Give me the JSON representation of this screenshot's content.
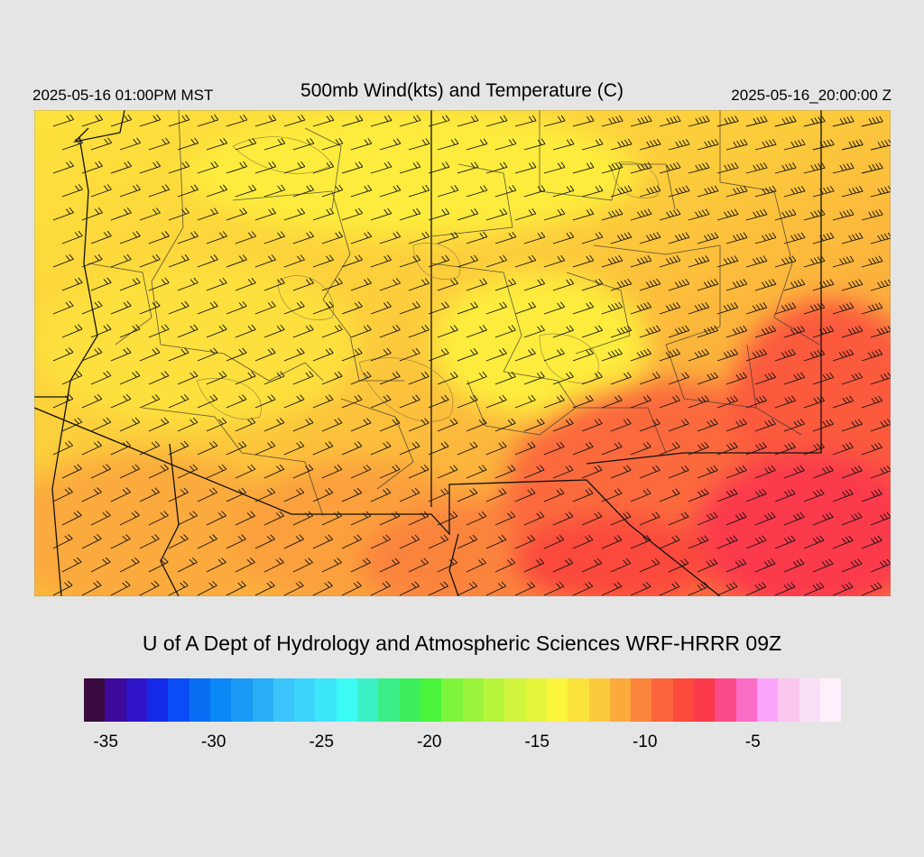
{
  "header": {
    "local_time": "2025-05-16 01:00PM MST",
    "title": "500mb Wind(kts) and Temperature (C)",
    "utc_time": "2025-05-16_20:00:00 Z"
  },
  "credit": "U of A Dept of Hydrology and Atmospheric Sciences WRF-HRRR 09Z",
  "colorbar": {
    "colors": [
      "#3a0a40",
      "#3c0a9a",
      "#2f14c8",
      "#1529e8",
      "#0a4cf5",
      "#0a6ef5",
      "#0a88f5",
      "#1a9af5",
      "#2aaef5",
      "#3cc4fb",
      "#3cd4fb",
      "#3ce6fb",
      "#3cfbf5",
      "#3cf0c8",
      "#3cee88",
      "#3cee5c",
      "#4af53c",
      "#7ef53c",
      "#9bf53c",
      "#b6f53c",
      "#d0f53c",
      "#e4f53c",
      "#fbf53c",
      "#fbe23c",
      "#fbca3c",
      "#fbaa3c",
      "#fb843c",
      "#fb643c",
      "#fb4a3c",
      "#fb3a4c",
      "#fb4a8a",
      "#fb6cc6",
      "#fba4fb",
      "#fbc6f0",
      "#fbe0f8",
      "#fff0fb"
    ],
    "tick_labels": [
      "-35",
      "-30",
      "-25",
      "-20",
      "-15",
      "-10",
      "-5"
    ],
    "tick_positions": [
      0.0288,
      0.1713,
      0.3137,
      0.4562,
      0.5986,
      0.741,
      0.8835
    ]
  },
  "map": {
    "field": "500mb temperature with wind barbs",
    "colors": {
      "yellow": "#fde23c",
      "orange": "#fbaa3c",
      "dark_orange": "#fb843c",
      "red": "#fb4a3c",
      "deep_red": "#fb3a4c"
    }
  }
}
